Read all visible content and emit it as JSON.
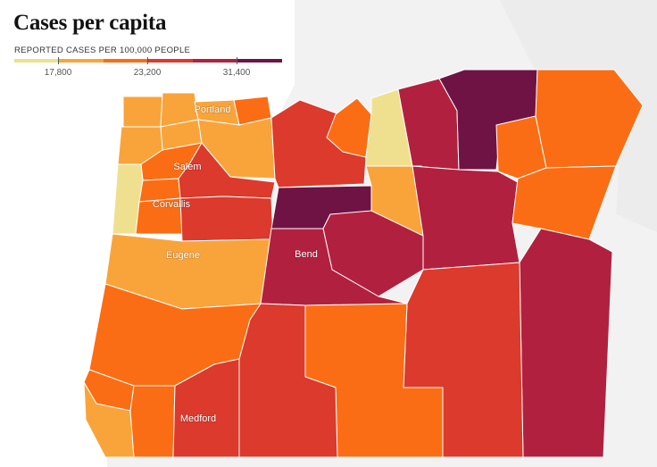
{
  "title": "Cases per capita",
  "legend": {
    "heading": "REPORTED CASES PER 100,000 PEOPLE",
    "colors": [
      "#efe08f",
      "#f9a43b",
      "#fb6d14",
      "#db3a2c",
      "#b1213f",
      "#6f1345"
    ],
    "ticks": [
      {
        "label": "17,800",
        "value": 17800
      },
      {
        "label": "23,200",
        "value": 23200
      },
      {
        "label": "31,400",
        "value": 31400
      }
    ]
  },
  "cities": {
    "portland": "Portland",
    "salem": "Salem",
    "corvallis": "Corvallis",
    "eugene": "Eugene",
    "bend": "Bend",
    "medford": "Medford"
  },
  "colors": {
    "background_land": "#f0f0f0",
    "border": "#ffffff"
  }
}
